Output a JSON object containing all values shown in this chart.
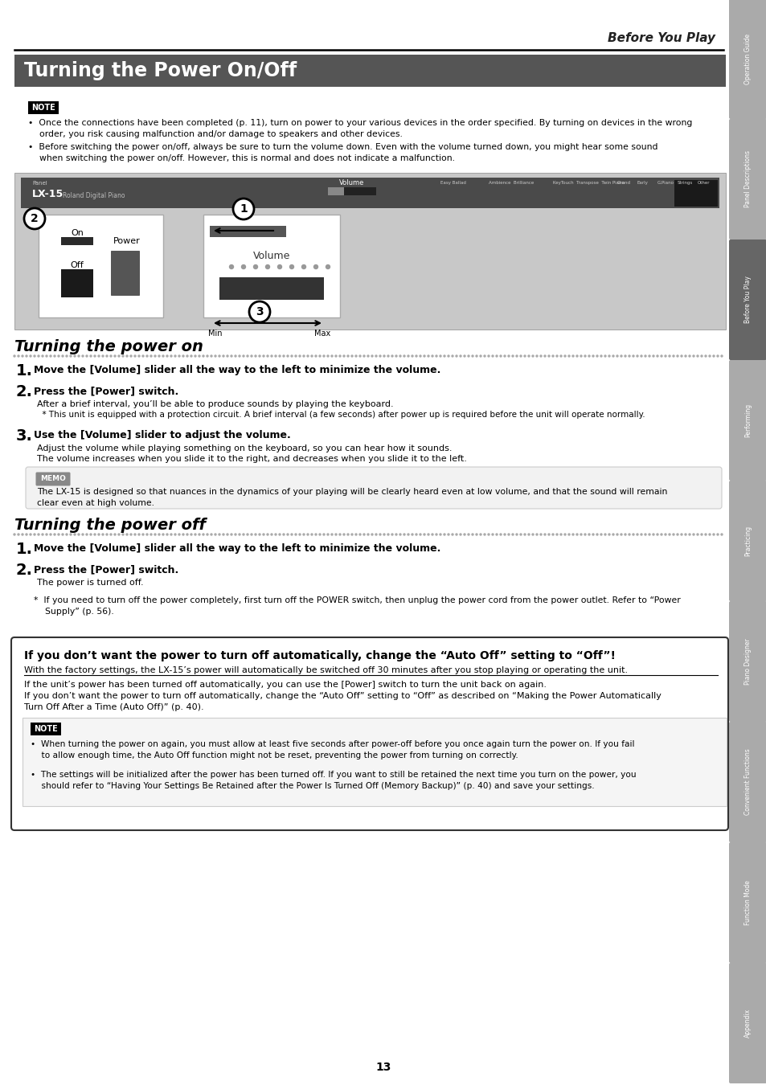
{
  "page_bg": "#ffffff",
  "header_title": "Before You Play",
  "main_title": "Turning the Power On/Off",
  "main_title_bg": "#555555",
  "main_title_color": "#ffffff",
  "note_text1": "•  Once the connections have been completed (p. 11), turn on power to your various devices in the order specified. By turning on devices in the wrong\n    order, you risk causing malfunction and/or damage to speakers and other devices.",
  "note_text2": "•  Before switching the power on/off, always be sure to turn the volume down. Even with the volume turned down, you might hear some sound\n    when switching the power on/off. However, this is normal and does not indicate a malfunction.",
  "section1_title": "Turning the power on",
  "section2_title": "Turning the power off",
  "step1_bold": "Move the [Volume] slider all the way to the left to minimize the volume.",
  "step2_bold": "Press the [Power] switch.",
  "step2_normal1": "After a brief interval, you’ll be able to produce sounds by playing the keyboard.",
  "step2_normal2": "  * This unit is equipped with a protection circuit. A brief interval (a few seconds) after power up is required before the unit will operate normally.",
  "step3_bold": "Use the [Volume] slider to adjust the volume.",
  "step3_normal1": "Adjust the volume while playing something on the keyboard, so you can hear how it sounds.",
  "step3_normal2": "The volume increases when you slide it to the right, and decreases when you slide it to the left.",
  "memo_text": "The LX-15 is designed so that nuances in the dynamics of your playing will be clearly heard even at low volume, and that the sound will remain\nclear even at high volume.",
  "s2_step1_bold": "Move the [Volume] slider all the way to the left to minimize the volume.",
  "s2_step2_bold": "Press the [Power] switch.",
  "s2_step2_normal": "The power is turned off.",
  "footnote": "  *  If you need to turn off the power completely, first turn off the POWER switch, then unplug the power cord from the power outlet. Refer to “Power\n      Supply” (p. 56).",
  "box_title": "If you don’t want the power to turn off automatically, change the “Auto Off” setting to “Off”!",
  "box_underline": "With the factory settings, the LX-15’s power will automatically be switched off 30 minutes after you stop playing or operating the unit.",
  "box_text1": "If the unit’s power has been turned off automatically, you can use the [Power] switch to turn the unit back on again.",
  "box_text2": "If you don’t want the power to turn off automatically, change the “Auto Off” setting to “Off” as described on “Making the Power Automatically\nTurn Off After a Time (Auto Off)” (p. 40).",
  "box_note_text1": "•  When turning the power on again, you must allow at least five seconds after power-off before you once again turn the power on. If you fail\n    to allow enough time, the Auto Off function might not be reset, preventing the power from turning on correctly.",
  "box_note_text2": "•  The settings will be initialized after the power has been turned off. If you want to still be retained the next time you turn on the power, you\n    should refer to “Having Your Settings Be Retained after the Power Is Turned Off (Memory Backup)” (p. 40) and save your settings.",
  "page_number": "13",
  "sidebar_labels": [
    "Operation Guide",
    "Panel Descriptions",
    "Before You Play",
    "Performing",
    "Practicing",
    "Piano Designer",
    "Convenient Functions",
    "Function Mode",
    "Appendix"
  ],
  "sidebar_active": 2
}
